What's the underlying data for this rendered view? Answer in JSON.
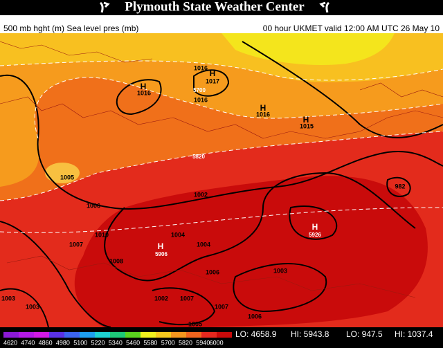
{
  "header": {
    "title": "Plymouth State Weather Center",
    "left": "500 mb hght (m) Sea level pres (mb)",
    "right": "00 hour UKMET valid 12:00 AM UTC 26 May 10"
  },
  "legend": {
    "labels": [
      "4620",
      "4740",
      "4860",
      "4980",
      "5100",
      "5220",
      "5340",
      "5460",
      "5580",
      "5700",
      "5820",
      "5940",
      "6000"
    ]
  },
  "stats": [
    "LO: 4658.9",
    "HI: 5943.8",
    "LO: 947.5",
    "HI: 1037.4"
  ],
  "map": {
    "labels": [
      "H",
      "1016",
      "1017",
      "5700",
      "1016",
      "H",
      "1016",
      "H",
      "1016",
      "H",
      "1015",
      "5820",
      "1005",
      "982",
      "1006",
      "1002",
      "1010",
      "1007",
      "1004",
      "1004",
      "H",
      "5926",
      "H",
      "5906",
      "1008",
      "1006",
      "1003",
      "1002",
      "1007",
      "1007",
      "1003",
      "1003",
      "1006",
      "1005"
    ]
  }
}
